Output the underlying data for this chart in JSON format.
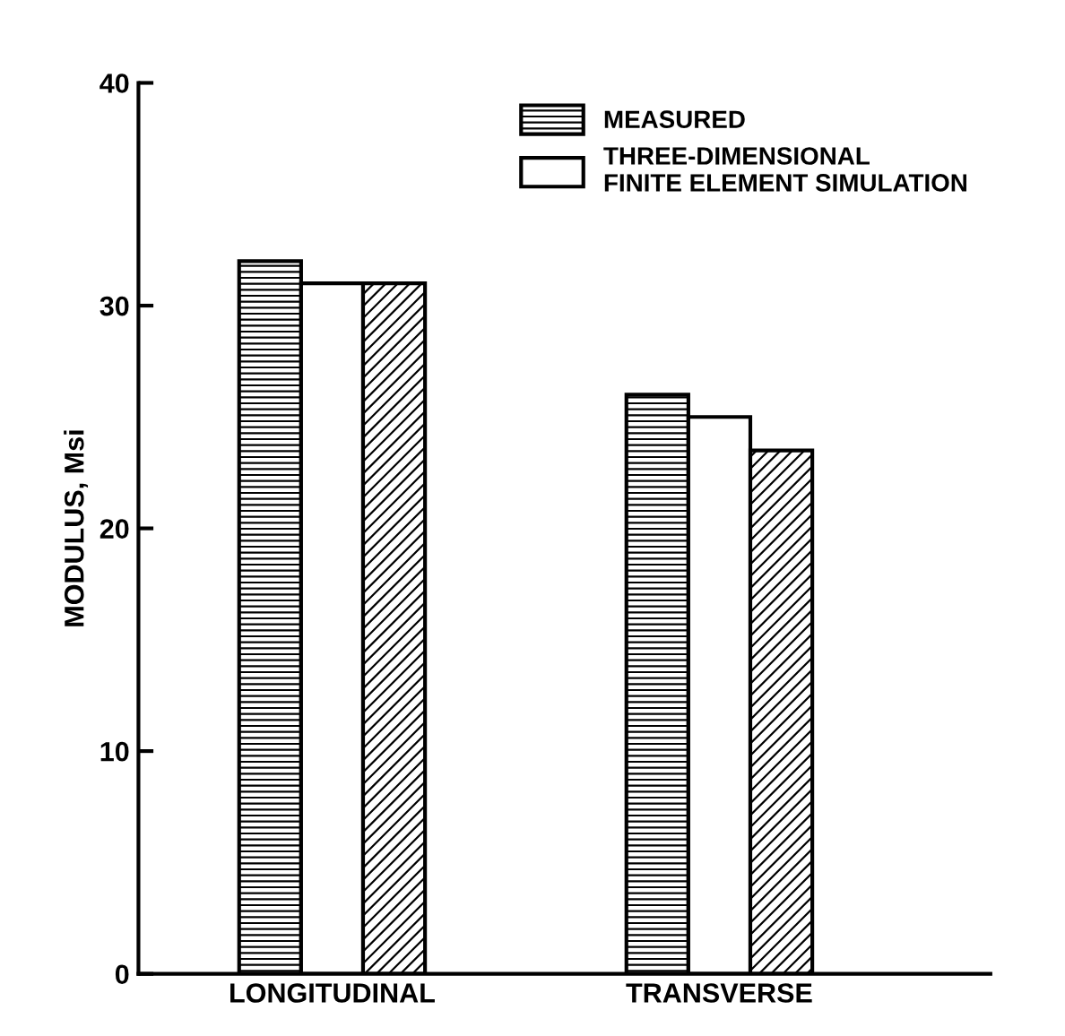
{
  "chart_data": {
    "type": "bar",
    "ylabel": "MODULUS, Msi",
    "categories": [
      "LONGITUDINAL",
      "TRANSVERSE"
    ],
    "series": [
      {
        "name": "MEASURED",
        "color": "#000000",
        "values": [
          32,
          26
        ]
      },
      {
        "name": "THREE-DIMENSIONAL\nFINITE ELEMENT SIMULATION",
        "color": "#ffffff",
        "values": [
          31,
          25
        ]
      },
      {
        "color": "#000000",
        "values": [
          31,
          23.5
        ]
      }
    ],
    "ylim": [
      0,
      40
    ],
    "yticks": [
      0,
      10,
      20,
      30,
      40
    ],
    "grid": false,
    "legend": "top right"
  }
}
